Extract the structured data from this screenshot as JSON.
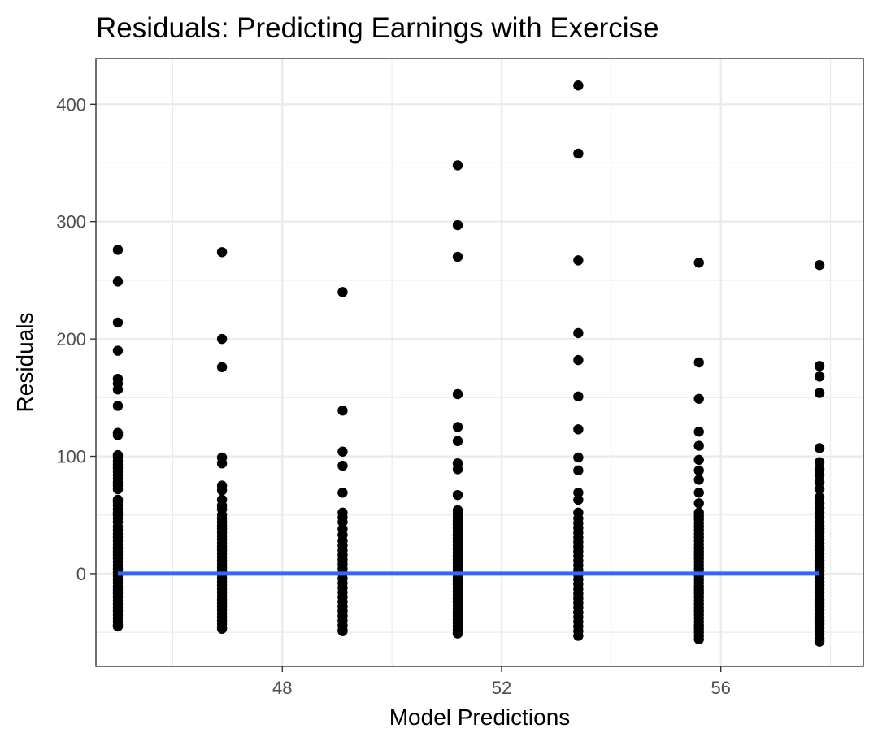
{
  "chart_data": {
    "type": "scatter",
    "title": "Residuals: Predicting Earnings with Exercise",
    "xlabel": "Model Predictions",
    "ylabel": "Residuals",
    "xlim": [
      44.6,
      58.6
    ],
    "ylim": [
      -79,
      439
    ],
    "x_ticks": [
      48,
      52,
      56
    ],
    "x_minor_ticks": [
      46,
      50,
      54,
      58
    ],
    "y_ticks": [
      0,
      100,
      200,
      300,
      400
    ],
    "y_minor_ticks": [
      -50,
      50,
      150,
      250,
      350
    ],
    "grid": true,
    "legend": "none",
    "colors": {
      "points": "#000000",
      "reference_line": "#3366ff",
      "grid": "#ebebeb",
      "panel_border": "#333333"
    },
    "reference_line": {
      "y": 0,
      "x_from": 45.0,
      "x_to": 57.8
    },
    "groups": [
      {
        "x": 45.0,
        "points": [
          276,
          249,
          214,
          190,
          166,
          162,
          157,
          143,
          120,
          118,
          101,
          99,
          96,
          93,
          90,
          87,
          84,
          81,
          78,
          75,
          72,
          63,
          61,
          58,
          55,
          52,
          50,
          47,
          44,
          40,
          37,
          34,
          31,
          28,
          25,
          22,
          19,
          16,
          13,
          10,
          7,
          4,
          1,
          -2,
          -5,
          -8,
          -11,
          -14,
          -17,
          -20,
          -23,
          -26,
          -29,
          -32,
          -35,
          -38,
          -41,
          -44,
          -45
        ]
      },
      {
        "x": 46.9,
        "points": [
          274,
          200,
          176,
          99,
          94,
          75,
          71,
          63,
          58,
          55,
          50,
          47,
          44,
          41,
          38,
          35,
          32,
          29,
          26,
          23,
          20,
          17,
          14,
          11,
          8,
          5,
          2,
          -1,
          -4,
          -7,
          -10,
          -13,
          -16,
          -19,
          -22,
          -25,
          -28,
          -31,
          -34,
          -37,
          -40,
          -43,
          -46,
          -47
        ]
      },
      {
        "x": 49.1,
        "points": [
          240,
          139,
          104,
          92,
          69,
          52,
          48,
          44,
          38,
          33,
          28,
          24,
          20,
          16,
          12,
          8,
          4,
          0,
          -4,
          -8,
          -12,
          -16,
          -20,
          -24,
          -28,
          -32,
          -36,
          -40,
          -44,
          -48,
          -49
        ]
      },
      {
        "x": 51.2,
        "points": [
          348,
          297,
          270,
          153,
          125,
          113,
          94,
          89,
          67,
          54,
          51,
          48,
          45,
          42,
          39,
          36,
          33,
          30,
          27,
          24,
          21,
          18,
          15,
          12,
          9,
          6,
          3,
          0,
          -3,
          -6,
          -9,
          -12,
          -15,
          -18,
          -21,
          -24,
          -27,
          -30,
          -33,
          -36,
          -39,
          -42,
          -45,
          -48,
          -51
        ]
      },
      {
        "x": 53.4,
        "points": [
          416,
          358,
          267,
          205,
          182,
          151,
          123,
          99,
          88,
          69,
          63,
          52,
          47,
          43,
          39,
          35,
          31,
          27,
          23,
          19,
          15,
          11,
          7,
          3,
          -1,
          -5,
          -9,
          -13,
          -17,
          -21,
          -25,
          -29,
          -33,
          -37,
          -41,
          -45,
          -49,
          -53
        ]
      },
      {
        "x": 55.6,
        "points": [
          265,
          180,
          149,
          121,
          109,
          97,
          88,
          80,
          69,
          60,
          52,
          49,
          46,
          43,
          40,
          37,
          34,
          31,
          28,
          25,
          22,
          19,
          16,
          13,
          10,
          7,
          4,
          1,
          -2,
          -5,
          -8,
          -11,
          -14,
          -17,
          -20,
          -23,
          -26,
          -29,
          -32,
          -35,
          -38,
          -41,
          -44,
          -47,
          -50,
          -53,
          -56
        ]
      },
      {
        "x": 57.8,
        "points": [
          263,
          177,
          168,
          154,
          107,
          95,
          89,
          84,
          78,
          72,
          65,
          60,
          56,
          52,
          48,
          44,
          41,
          38,
          35,
          32,
          29,
          26,
          23,
          20,
          17,
          14,
          11,
          8,
          5,
          2,
          -1,
          -4,
          -7,
          -10,
          -13,
          -16,
          -19,
          -22,
          -25,
          -28,
          -31,
          -34,
          -37,
          -40,
          -43,
          -46,
          -49,
          -52,
          -55,
          -58
        ]
      }
    ]
  }
}
